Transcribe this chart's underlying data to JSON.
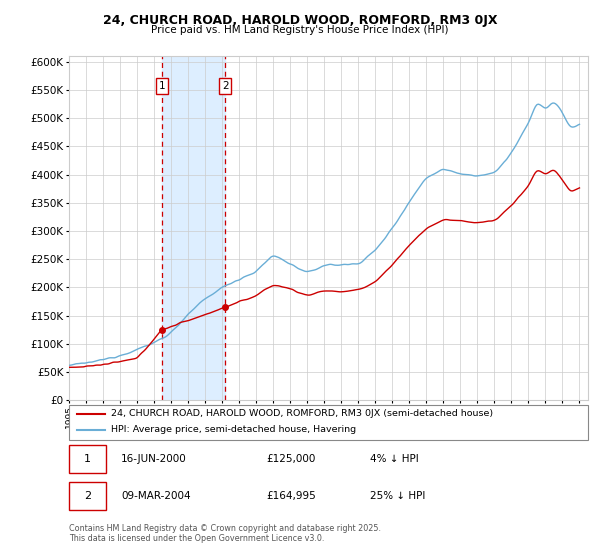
{
  "title": "24, CHURCH ROAD, HAROLD WOOD, ROMFORD, RM3 0JX",
  "subtitle": "Price paid vs. HM Land Registry's House Price Index (HPI)",
  "yticks": [
    0,
    50000,
    100000,
    150000,
    200000,
    250000,
    300000,
    350000,
    400000,
    450000,
    500000,
    550000,
    600000
  ],
  "year_start": 1995,
  "year_end": 2025,
  "hpi_color": "#6aaed6",
  "price_color": "#cc0000",
  "shade_color": "#ddeeff",
  "vline_color": "#cc0000",
  "legend_label_price": "24, CHURCH ROAD, HAROLD WOOD, ROMFORD, RM3 0JX (semi-detached house)",
  "legend_label_hpi": "HPI: Average price, semi-detached house, Havering",
  "transaction1_date": "16-JUN-2000",
  "transaction1_price": "£125,000",
  "transaction1_note": "4% ↓ HPI",
  "transaction1_year": 2000.45,
  "transaction1_value": 125000,
  "transaction2_date": "09-MAR-2004",
  "transaction2_price": "£164,995",
  "transaction2_note": "25% ↓ HPI",
  "transaction2_year": 2004.18,
  "transaction2_value": 164995,
  "footer": "Contains HM Land Registry data © Crown copyright and database right 2025.\nThis data is licensed under the Open Government Licence v3.0.",
  "background_color": "#FFFFFF",
  "grid_color": "#cccccc",
  "hpi_anchors_years": [
    1995,
    1996,
    1997,
    1998,
    1999,
    2000,
    2001,
    2002,
    2003,
    2004,
    2005,
    2006,
    2007,
    2008,
    2009,
    2010,
    2011,
    2012,
    2013,
    2014,
    2015,
    2016,
    2017,
    2018,
    2019,
    2020,
    2021,
    2022,
    2022.5,
    2023,
    2023.5,
    2024,
    2024.5,
    2025
  ],
  "hpi_anchors_vals": [
    62000,
    66000,
    72000,
    80000,
    90000,
    102000,
    120000,
    152000,
    180000,
    200000,
    215000,
    228000,
    258000,
    242000,
    225000,
    240000,
    240000,
    242000,
    265000,
    305000,
    352000,
    395000,
    410000,
    402000,
    398000,
    402000,
    438000,
    490000,
    530000,
    515000,
    530000,
    510000,
    480000,
    490000
  ],
  "price_anchors_years": [
    1995,
    1997,
    1999,
    2000.45,
    2004.18,
    2005,
    2006,
    2007,
    2008,
    2009,
    2010,
    2011,
    2012,
    2013,
    2014,
    2015,
    2016,
    2017,
    2018,
    2019,
    2020,
    2021,
    2022,
    2022.5,
    2023,
    2023.5,
    2024,
    2024.5,
    2025
  ],
  "price_anchors_vals": [
    58000,
    63000,
    74000,
    125000,
    164995,
    175000,
    185000,
    205000,
    198000,
    185000,
    195000,
    192000,
    195000,
    210000,
    240000,
    275000,
    305000,
    320000,
    318000,
    315000,
    318000,
    345000,
    380000,
    410000,
    400000,
    410000,
    390000,
    368000,
    378000
  ]
}
